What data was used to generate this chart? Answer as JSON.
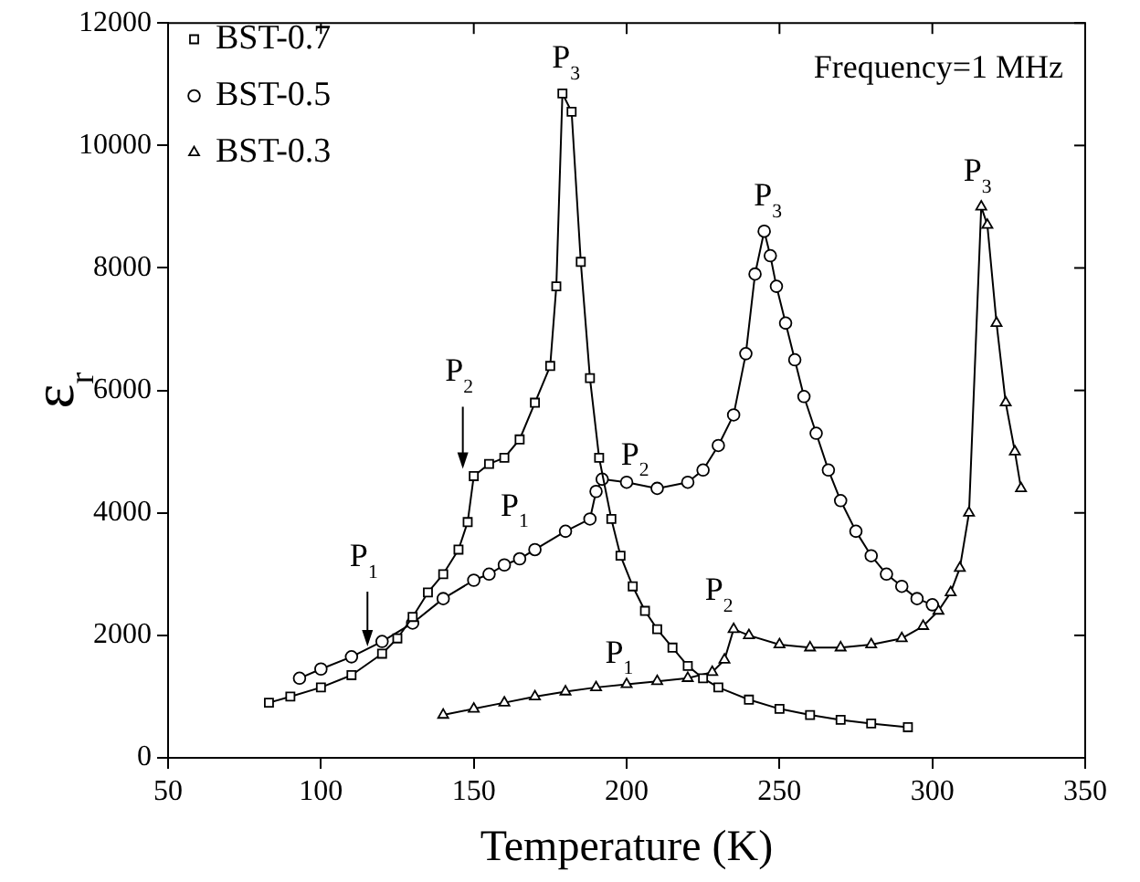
{
  "chart_data": {
    "type": "line",
    "xlabel": "Temperature (K)",
    "ylabel": "ε$_{r}$",
    "xlim": [
      50,
      350
    ],
    "xticks": [
      50,
      100,
      150,
      200,
      250,
      300,
      350
    ],
    "ylim": [
      0,
      12000
    ],
    "yticks": [
      0,
      2000,
      4000,
      6000,
      8000,
      10000,
      12000
    ],
    "grid": false,
    "legend": "top left",
    "line_style": "solid",
    "series": [
      {
        "name": "BST-0.7",
        "color": "#000000",
        "marker": "square",
        "x": [
          83,
          90,
          100,
          110,
          120,
          125,
          130,
          135,
          140,
          145,
          148,
          150,
          155,
          160,
          165,
          170,
          175,
          177,
          179,
          182,
          185,
          188,
          191,
          195,
          198,
          202,
          206,
          210,
          215,
          220,
          225,
          230,
          240,
          250,
          260,
          270,
          280,
          292
        ],
        "values": [
          900,
          1000,
          1150,
          1350,
          1700,
          1950,
          2300,
          2700,
          3000,
          3400,
          3850,
          4600,
          4800,
          4900,
          5200,
          5800,
          6400,
          7700,
          10850,
          10550,
          8100,
          6200,
          4900,
          3900,
          3300,
          2800,
          2400,
          2100,
          1800,
          1500,
          1300,
          1150,
          950,
          800,
          700,
          620,
          560,
          500
        ]
      },
      {
        "name": "BST-0.5",
        "color": "#000000",
        "marker": "circle",
        "x": [
          93,
          100,
          110,
          120,
          130,
          140,
          150,
          155,
          160,
          165,
          170,
          180,
          188,
          190,
          192,
          200,
          210,
          220,
          225,
          230,
          235,
          239,
          242,
          245,
          247,
          249,
          252,
          255,
          258,
          262,
          266,
          270,
          275,
          280,
          285,
          290,
          295,
          300
        ],
        "values": [
          1300,
          1450,
          1650,
          1900,
          2200,
          2600,
          2900,
          3000,
          3150,
          3250,
          3400,
          3700,
          3900,
          4350,
          4550,
          4500,
          4400,
          4500,
          4700,
          5100,
          5600,
          6600,
          7900,
          8600,
          8200,
          7700,
          7100,
          6500,
          5900,
          5300,
          4700,
          4200,
          3700,
          3300,
          3000,
          2800,
          2600,
          2500
        ]
      },
      {
        "name": "BST-0.3",
        "color": "#000000",
        "marker": "triangle",
        "x": [
          140,
          150,
          160,
          170,
          180,
          190,
          200,
          210,
          220,
          228,
          232,
          235,
          240,
          250,
          260,
          270,
          280,
          290,
          297,
          302,
          306,
          309,
          312,
          316,
          318,
          321,
          324,
          327,
          329
        ],
        "values": [
          700,
          800,
          900,
          1000,
          1080,
          1150,
          1200,
          1250,
          1300,
          1400,
          1600,
          2100,
          2000,
          1850,
          1800,
          1800,
          1850,
          1950,
          2150,
          2400,
          2700,
          3100,
          4000,
          9000,
          8700,
          7100,
          5800,
          5000,
          4400
        ]
      }
    ],
    "annotations": [
      "Frequency=1 MHz",
      {
        "text": "P$_{1}$",
        "x": 120,
        "y": 1700
      },
      {
        "text": "P$_{2}$",
        "x": 150,
        "y": 4600
      },
      {
        "text": "P$_{3}$",
        "x": 179,
        "y": 10850
      },
      {
        "text": "P$_{1}$",
        "x": 155,
        "y": 3000
      },
      {
        "text": "P$_{2}$",
        "x": 192,
        "y": 4550
      },
      {
        "text": "P$_{3}$",
        "x": 245,
        "y": 8600
      },
      {
        "text": "P$_{1}$",
        "x": 200,
        "y": 1200
      },
      {
        "text": "P$_{2}$",
        "x": 235,
        "y": 2100
      },
      {
        "text": "P$_{3}$",
        "x": 316,
        "y": 9000
      }
    ]
  }
}
